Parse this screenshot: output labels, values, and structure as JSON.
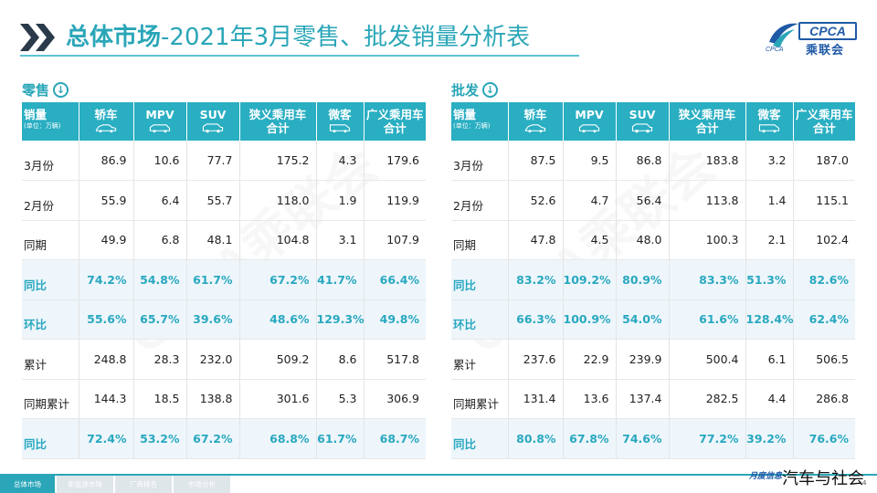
{
  "title": {
    "bold_part": "总体市场",
    "rest_part": "-2021年3月零售、批发销量分析表"
  },
  "logo": {
    "brand": "CPCA",
    "cn": "乘联会",
    "sub": "CPCA"
  },
  "retail": {
    "label": "零售",
    "header_first": "销量",
    "header_unit": "(单位：万辆)",
    "columns": [
      {
        "line1": "轿车",
        "line2": "",
        "icon": "sedan-icon"
      },
      {
        "line1": "MPV",
        "line2": "",
        "icon": "mpv-icon"
      },
      {
        "line1": "SUV",
        "line2": "",
        "icon": "suv-icon"
      },
      {
        "line1": "狭义乘用车",
        "line2": "合计",
        "icon": ""
      },
      {
        "line1": "微客",
        "line2": "",
        "icon": "minivan-icon"
      },
      {
        "line1": "广义乘用车",
        "line2": "合计",
        "icon": ""
      }
    ],
    "rows": [
      {
        "label": "3月份",
        "pct": false,
        "values": [
          "86.9",
          "10.6",
          "77.7",
          "175.2",
          "4.3",
          "179.6"
        ]
      },
      {
        "label": "2月份",
        "pct": false,
        "values": [
          "55.9",
          "6.4",
          "55.7",
          "118.0",
          "1.9",
          "119.9"
        ]
      },
      {
        "label": "同期",
        "pct": false,
        "values": [
          "49.9",
          "6.8",
          "48.1",
          "104.8",
          "3.1",
          "107.9"
        ]
      },
      {
        "label": "同比",
        "pct": true,
        "values": [
          "74.2%",
          "54.8%",
          "61.7%",
          "67.2%",
          "41.7%",
          "66.4%"
        ]
      },
      {
        "label": "环比",
        "pct": true,
        "values": [
          "55.6%",
          "65.7%",
          "39.6%",
          "48.6%",
          "129.3%",
          "49.8%"
        ]
      },
      {
        "label": "累计",
        "pct": false,
        "values": [
          "248.8",
          "28.3",
          "232.0",
          "509.2",
          "8.6",
          "517.8"
        ]
      },
      {
        "label": "同期累计",
        "pct": false,
        "values": [
          "144.3",
          "18.5",
          "138.8",
          "301.6",
          "5.3",
          "306.9"
        ]
      },
      {
        "label": "同比",
        "pct": true,
        "values": [
          "72.4%",
          "53.2%",
          "67.2%",
          "68.8%",
          "61.7%",
          "68.7%"
        ]
      }
    ]
  },
  "wholesale": {
    "label": "批发",
    "header_first": "销量",
    "header_unit": "(单位：万辆)",
    "columns": [
      {
        "line1": "轿车",
        "line2": "",
        "icon": "sedan-icon"
      },
      {
        "line1": "MPV",
        "line2": "",
        "icon": "mpv-icon"
      },
      {
        "line1": "SUV",
        "line2": "",
        "icon": "suv-icon"
      },
      {
        "line1": "狭义乘用车",
        "line2": "合计",
        "icon": ""
      },
      {
        "line1": "微客",
        "line2": "",
        "icon": "minivan-icon"
      },
      {
        "line1": "广义乘用车",
        "line2": "合计",
        "icon": ""
      }
    ],
    "rows": [
      {
        "label": "3月份",
        "pct": false,
        "values": [
          "87.5",
          "9.5",
          "86.8",
          "183.8",
          "3.2",
          "187.0"
        ]
      },
      {
        "label": "2月份",
        "pct": false,
        "values": [
          "52.6",
          "4.7",
          "56.4",
          "113.8",
          "1.4",
          "115.1"
        ]
      },
      {
        "label": "同期",
        "pct": false,
        "values": [
          "47.8",
          "4.5",
          "48.0",
          "100.3",
          "2.1",
          "102.4"
        ]
      },
      {
        "label": "同比",
        "pct": true,
        "values": [
          "83.2%",
          "109.2%",
          "80.9%",
          "83.3%",
          "51.3%",
          "82.6%"
        ]
      },
      {
        "label": "环比",
        "pct": true,
        "values": [
          "66.3%",
          "100.9%",
          "54.0%",
          "61.6%",
          "128.4%",
          "62.4%"
        ]
      },
      {
        "label": "累计",
        "pct": false,
        "values": [
          "237.6",
          "22.9",
          "239.9",
          "500.4",
          "6.1",
          "506.5"
        ]
      },
      {
        "label": "同期累计",
        "pct": false,
        "values": [
          "131.4",
          "13.6",
          "137.4",
          "282.5",
          "4.4",
          "286.8"
        ]
      },
      {
        "label": "同比",
        "pct": true,
        "values": [
          "80.8%",
          "67.8%",
          "74.6%",
          "77.2%",
          "39.2%",
          "76.6%"
        ]
      }
    ]
  },
  "watermark": "CPCA乘联会",
  "nav": {
    "tabs": [
      {
        "label": "总体市场",
        "active": true
      },
      {
        "label": "新能源市场",
        "active": false
      },
      {
        "label": "厂商排名",
        "active": false
      },
      {
        "label": "市场分析",
        "active": false
      }
    ]
  },
  "footer": {
    "text": "月度信息",
    "page": "4",
    "brand": "汽车与社会"
  },
  "colors": {
    "accent": "#2aa6b8",
    "header_bg": "#29aec2",
    "pct_row_bg": "#eef6fb",
    "logo_blue": "#1f5aa6"
  }
}
